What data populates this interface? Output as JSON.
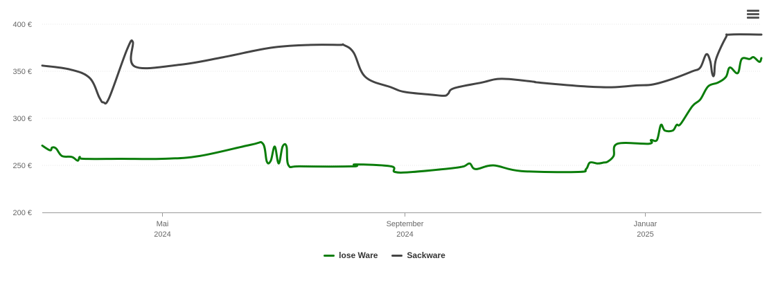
{
  "chart_data": {
    "type": "line",
    "y_ticks": [
      "200 €",
      "250 €",
      "300 €",
      "350 €",
      "400 €"
    ],
    "ylim": [
      200,
      400
    ],
    "xlim": [
      "2024-03-01",
      "2025-03-01"
    ],
    "x_ticks": [
      {
        "date": "2024-05-01",
        "month": "Mai",
        "year": "2024"
      },
      {
        "date": "2024-09-01",
        "month": "September",
        "year": "2024"
      },
      {
        "date": "2025-01-01",
        "month": "Januar",
        "year": "2025"
      }
    ],
    "legend_position": "bottom-center",
    "series": [
      {
        "name": "lose Ware",
        "color": "#0a7d0a",
        "points": [
          [
            "2024-03-01",
            271
          ],
          [
            "2024-03-05",
            266
          ],
          [
            "2024-03-06",
            269
          ],
          [
            "2024-03-08",
            268
          ],
          [
            "2024-03-11",
            260
          ],
          [
            "2024-03-16",
            259
          ],
          [
            "2024-03-19",
            255
          ],
          [
            "2024-03-20",
            259
          ],
          [
            "2024-03-22",
            257
          ],
          [
            "2024-04-10",
            257
          ],
          [
            "2024-05-01",
            257
          ],
          [
            "2024-05-20",
            260
          ],
          [
            "2024-06-15",
            272
          ],
          [
            "2024-06-21",
            273
          ],
          [
            "2024-06-23",
            254
          ],
          [
            "2024-06-25",
            255
          ],
          [
            "2024-06-27",
            270
          ],
          [
            "2024-06-29",
            252
          ],
          [
            "2024-07-01",
            270
          ],
          [
            "2024-07-03",
            270
          ],
          [
            "2024-07-04",
            250
          ],
          [
            "2024-07-10",
            249
          ],
          [
            "2024-08-06",
            249
          ],
          [
            "2024-08-07",
            251
          ],
          [
            "2024-08-25",
            249
          ],
          [
            "2024-08-27",
            243
          ],
          [
            "2024-09-05",
            243
          ],
          [
            "2024-09-25",
            247
          ],
          [
            "2024-10-01",
            249
          ],
          [
            "2024-10-04",
            252
          ],
          [
            "2024-10-07",
            246
          ],
          [
            "2024-10-16",
            250
          ],
          [
            "2024-10-30",
            244
          ],
          [
            "2024-11-28",
            243
          ],
          [
            "2024-12-02",
            246
          ],
          [
            "2024-12-04",
            253
          ],
          [
            "2024-12-08",
            252
          ],
          [
            "2024-12-11",
            253
          ],
          [
            "2024-12-13",
            254
          ],
          [
            "2024-12-16",
            260
          ],
          [
            "2024-12-18",
            273
          ],
          [
            "2025-01-03",
            273
          ],
          [
            "2025-01-04",
            277
          ],
          [
            "2025-01-07",
            277
          ],
          [
            "2025-01-09",
            293
          ],
          [
            "2025-01-11",
            287
          ],
          [
            "2025-01-15",
            287
          ],
          [
            "2025-01-17",
            293
          ],
          [
            "2025-01-19",
            294
          ],
          [
            "2025-01-25",
            313
          ],
          [
            "2025-01-29",
            320
          ],
          [
            "2025-02-02",
            334
          ],
          [
            "2025-02-07",
            338
          ],
          [
            "2025-02-11",
            344
          ],
          [
            "2025-02-13",
            354
          ],
          [
            "2025-02-17",
            348
          ],
          [
            "2025-02-19",
            363
          ],
          [
            "2025-02-23",
            363
          ],
          [
            "2025-02-25",
            365
          ],
          [
            "2025-02-28",
            360
          ],
          [
            "2025-03-01",
            364
          ]
        ]
      },
      {
        "name": "Sackware",
        "color": "#444444",
        "points": [
          [
            "2024-03-01",
            356
          ],
          [
            "2024-03-15",
            352
          ],
          [
            "2024-03-25",
            343
          ],
          [
            "2024-03-30",
            322
          ],
          [
            "2024-04-01",
            317
          ],
          [
            "2024-04-04",
            322
          ],
          [
            "2024-04-13",
            373
          ],
          [
            "2024-04-16",
            381
          ],
          [
            "2024-04-17",
            355
          ],
          [
            "2024-05-10",
            357
          ],
          [
            "2024-06-01",
            365
          ],
          [
            "2024-06-25",
            375
          ],
          [
            "2024-07-15",
            378
          ],
          [
            "2024-07-30",
            378
          ],
          [
            "2024-08-01",
            378
          ],
          [
            "2024-08-06",
            370
          ],
          [
            "2024-08-12",
            344
          ],
          [
            "2024-08-25",
            333
          ],
          [
            "2024-09-01",
            328
          ],
          [
            "2024-09-15",
            325
          ],
          [
            "2024-09-21",
            324
          ],
          [
            "2024-09-23",
            326
          ],
          [
            "2024-09-26",
            332
          ],
          [
            "2024-10-10",
            338
          ],
          [
            "2024-10-20",
            342
          ],
          [
            "2024-11-05",
            339
          ],
          [
            "2024-11-08",
            338
          ],
          [
            "2024-12-01",
            334
          ],
          [
            "2024-12-15",
            333
          ],
          [
            "2024-12-28",
            335
          ],
          [
            "2025-01-05",
            336
          ],
          [
            "2025-01-15",
            342
          ],
          [
            "2025-01-25",
            350
          ],
          [
            "2025-01-29",
            354
          ],
          [
            "2025-02-01",
            368
          ],
          [
            "2025-02-03",
            361
          ],
          [
            "2025-02-04",
            348
          ],
          [
            "2025-02-05",
            346
          ],
          [
            "2025-02-06",
            363
          ],
          [
            "2025-02-11",
            386
          ],
          [
            "2025-02-13",
            389
          ],
          [
            "2025-03-01",
            389
          ]
        ]
      }
    ]
  }
}
